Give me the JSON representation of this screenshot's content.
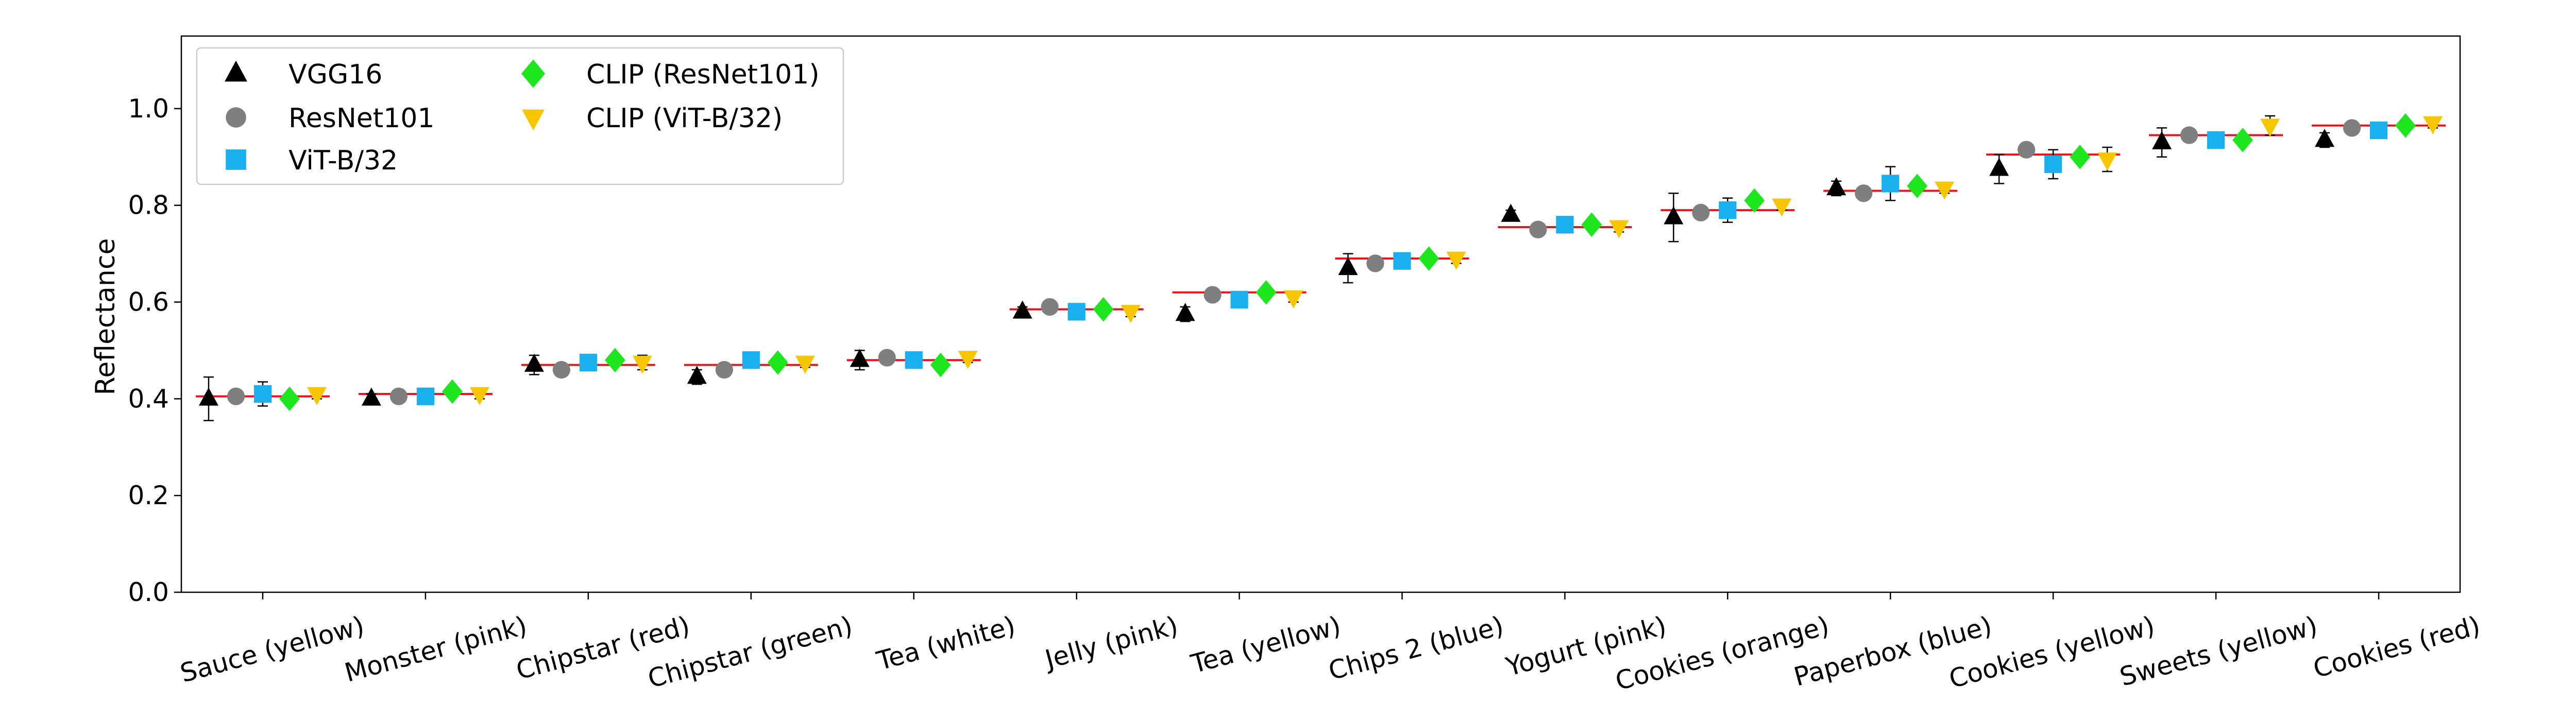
{
  "chart_data": {
    "type": "scatter",
    "title": "",
    "xlabel": "",
    "ylabel": "Reflectance",
    "ylim": [
      0.0,
      1.15
    ],
    "yticks": [
      "0.0",
      "0.2",
      "0.4",
      "0.6",
      "0.8",
      "1.0"
    ],
    "grid": false,
    "legend_position": "top-left",
    "categories": [
      "Sauce (yellow)",
      "Monster (pink)",
      "Chipstar (red)",
      "Chipstar (green)",
      "Tea (white)",
      "Jelly (pink)",
      "Tea (yellow)",
      "Chips 2 (blue)",
      "Yogurt (pink)",
      "Cookies (orange)",
      "Paperbox (blue)",
      "Cookies (yellow)",
      "Sweets (yellow)",
      "Cookies (red)"
    ],
    "ground_truth": [
      0.405,
      0.41,
      0.47,
      0.47,
      0.48,
      0.585,
      0.62,
      0.69,
      0.755,
      0.79,
      0.83,
      0.905,
      0.945,
      0.965
    ],
    "ground_truth_color": "#e8141c",
    "series": [
      {
        "name": "VGG16",
        "marker": "triangle-up",
        "color": "#000000",
        "values": [
          0.4,
          0.4,
          0.47,
          0.445,
          0.48,
          0.58,
          0.575,
          0.67,
          0.78,
          0.775,
          0.835,
          0.875,
          0.93,
          0.935
        ],
        "err": [
          0.045,
          0.01,
          0.02,
          0.015,
          0.02,
          0.01,
          0.015,
          0.03,
          0.01,
          0.05,
          0.015,
          0.03,
          0.03,
          0.015
        ]
      },
      {
        "name": "ResNet101",
        "marker": "circle",
        "color": "#7f7f7f",
        "values": [
          0.405,
          0.405,
          0.46,
          0.46,
          0.485,
          0.59,
          0.615,
          0.68,
          0.75,
          0.785,
          0.825,
          0.915,
          0.945,
          0.96
        ],
        "err": [
          0.01,
          0.005,
          0.01,
          0.01,
          0.01,
          0.005,
          0.005,
          0.01,
          0.01,
          0.01,
          0.01,
          0.01,
          0.01,
          0.01
        ]
      },
      {
        "name": "ViT-B/32",
        "marker": "square",
        "color": "#1ab0f0",
        "values": [
          0.41,
          0.405,
          0.475,
          0.48,
          0.48,
          0.58,
          0.605,
          0.685,
          0.76,
          0.79,
          0.845,
          0.885,
          0.935,
          0.955
        ],
        "err": [
          0.025,
          0.01,
          0.01,
          0.01,
          0.01,
          0.01,
          0.01,
          0.01,
          0.01,
          0.025,
          0.035,
          0.03,
          0.01,
          0.01
        ]
      },
      {
        "name": "CLIP (ResNet101)",
        "marker": "diamond",
        "color": "#1ee61e",
        "values": [
          0.4,
          0.415,
          0.48,
          0.475,
          0.47,
          0.585,
          0.62,
          0.69,
          0.76,
          0.81,
          0.84,
          0.9,
          0.935,
          0.965
        ],
        "err": [
          0.01,
          0.01,
          0.01,
          0.01,
          0.01,
          0.01,
          0.01,
          0.01,
          0.01,
          0.01,
          0.01,
          0.01,
          0.01,
          0.01
        ]
      },
      {
        "name": "CLIP (ViT-B/32)",
        "marker": "triangle-down",
        "color": "#f7c600",
        "values": [
          0.41,
          0.41,
          0.475,
          0.475,
          0.485,
          0.58,
          0.61,
          0.69,
          0.755,
          0.8,
          0.835,
          0.895,
          0.965,
          0.97
        ],
        "err": [
          0.01,
          0.01,
          0.015,
          0.01,
          0.01,
          0.01,
          0.01,
          0.01,
          0.01,
          0.01,
          0.01,
          0.025,
          0.02,
          0.01
        ]
      }
    ]
  }
}
